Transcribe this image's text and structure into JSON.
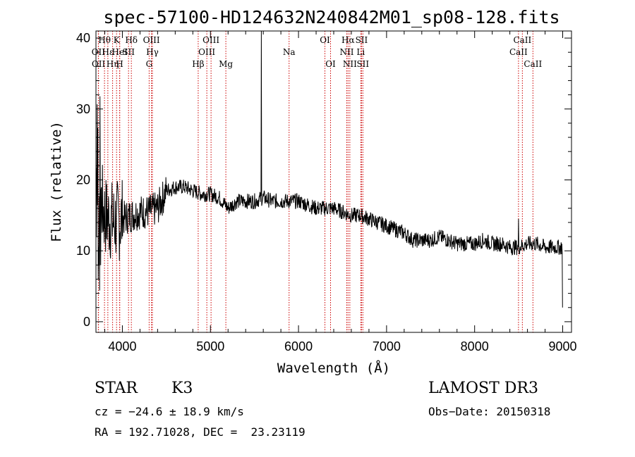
{
  "chart_data": {
    "type": "line",
    "title": "spec-57100-HD124632N240842M01_sp08-128.fits",
    "xlabel": "Wavelength (Å)",
    "ylabel": "Flux (relative)",
    "xlim": [
      3700,
      9100
    ],
    "ylim": [
      -1.5,
      41
    ],
    "xticks": [
      4000,
      5000,
      6000,
      7000,
      8000,
      9000
    ],
    "yticks": [
      0,
      10,
      20,
      30,
      40
    ],
    "line_color": "#000000",
    "marker_color": "#cc0000",
    "spectrum": {
      "name": "flux",
      "x": [
        3700,
        3800,
        3900,
        4000,
        4100,
        4200,
        4300,
        4400,
        4500,
        4600,
        4700,
        4800,
        4900,
        5000,
        5100,
        5200,
        5300,
        5400,
        5500,
        5600,
        5700,
        5800,
        5900,
        6000,
        6100,
        6200,
        6300,
        6400,
        6500,
        6600,
        6700,
        6800,
        6900,
        7000,
        7100,
        7200,
        7300,
        7400,
        7500,
        7600,
        7700,
        7800,
        7900,
        8000,
        8100,
        8200,
        8300,
        8400,
        8500,
        8600,
        8700,
        8800,
        8900,
        9000
      ],
      "y": [
        20,
        15,
        14,
        14.5,
        15,
        15.5,
        15.5,
        16,
        18.5,
        19,
        19,
        18.5,
        18,
        18,
        17.5,
        16,
        17,
        17,
        17,
        17.5,
        17,
        17,
        17,
        17,
        16.5,
        16,
        16,
        16,
        15.5,
        15,
        15,
        14.5,
        14,
        13.5,
        13,
        12.5,
        11.5,
        11.5,
        11.5,
        12,
        11.5,
        11,
        11,
        11,
        11.5,
        11,
        11,
        10.5,
        10.5,
        11,
        11,
        10.5,
        10.5,
        10.5
      ]
    },
    "spectral_lines": [
      {
        "label": "OII",
        "x": 3727,
        "row": 2
      },
      {
        "label": "OII",
        "x": 3729,
        "row": 3
      },
      {
        "label": "Hθ",
        "x": 3797,
        "row": 1
      },
      {
        "label": "Hε",
        "x": 3835,
        "row": 2
      },
      {
        "label": "Hη",
        "x": 3889,
        "row": 3
      },
      {
        "label": "K",
        "x": 3934,
        "row": 1
      },
      {
        "label": "H",
        "x": 3969,
        "row": 3
      },
      {
        "label": "HeI",
        "x": 3970,
        "row": 2
      },
      {
        "label": "SII",
        "x": 4070,
        "row": 2
      },
      {
        "label": "Hδ",
        "x": 4102,
        "row": 1
      },
      {
        "label": "G",
        "x": 4304,
        "row": 3
      },
      {
        "label": "OIII",
        "x": 4330,
        "row": 1
      },
      {
        "label": "Hγ",
        "x": 4341,
        "row": 2
      },
      {
        "label": "Hβ",
        "x": 4861,
        "row": 3
      },
      {
        "label": "OIII",
        "x": 4959,
        "row": 2
      },
      {
        "label": "OIII",
        "x": 5007,
        "row": 1
      },
      {
        "label": "Mg",
        "x": 5175,
        "row": 3
      },
      {
        "label": "Na",
        "x": 5893,
        "row": 2
      },
      {
        "label": "OI",
        "x": 6300,
        "row": 1
      },
      {
        "label": "OI",
        "x": 6364,
        "row": 3
      },
      {
        "label": "NII",
        "x": 6548,
        "row": 2
      },
      {
        "label": "Hα",
        "x": 6563,
        "row": 1
      },
      {
        "label": "NII",
        "x": 6583,
        "row": 3
      },
      {
        "label": "SII",
        "x": 6716,
        "row": 1
      },
      {
        "label": "Li",
        "x": 6707,
        "row": 2
      },
      {
        "label": "SII",
        "x": 6731,
        "row": 3
      },
      {
        "label": "CaII",
        "x": 8498,
        "row": 2
      },
      {
        "label": "CaII",
        "x": 8542,
        "row": 1
      },
      {
        "label": "CaII",
        "x": 8662,
        "row": 3
      }
    ]
  },
  "info": {
    "object_class": "STAR",
    "subclass": "K3",
    "survey": "LAMOST DR3",
    "cz": "cz = −24.6 ± 18.9 km/s",
    "obs_date": "Obs−Date: 20150318",
    "coords": "RA = 192.71028, DEC =  23.23119"
  }
}
